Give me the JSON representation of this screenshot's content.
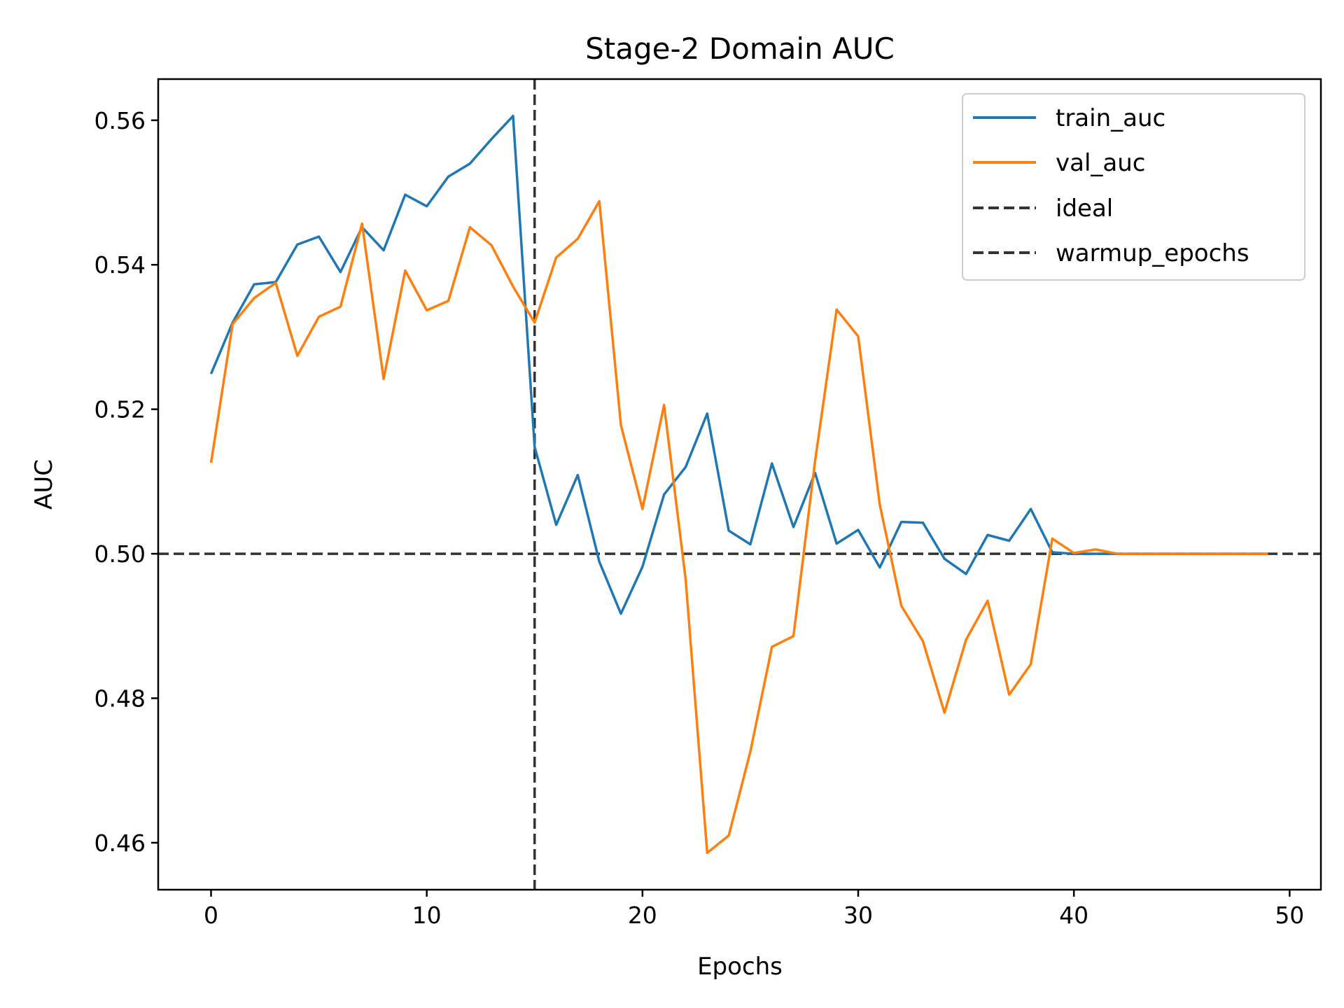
{
  "chart_data": {
    "type": "line",
    "title": "Stage-2 Domain AUC",
    "xlabel": "Epochs",
    "ylabel": "AUC",
    "xlim": [
      -2.45,
      51.45
    ],
    "ylim": [
      0.4535,
      0.5657
    ],
    "xticks": [
      0,
      10,
      20,
      30,
      40,
      50
    ],
    "xtick_labels": [
      "0",
      "10",
      "20",
      "30",
      "40",
      "50"
    ],
    "yticks": [
      0.46,
      0.48,
      0.5,
      0.52,
      0.54,
      0.56
    ],
    "ytick_labels": [
      "0.46",
      "0.48",
      "0.50",
      "0.52",
      "0.54",
      "0.56"
    ],
    "grid": false,
    "legend_position": "top-right",
    "series": [
      {
        "name": "train_auc",
        "color": "#1f77b4",
        "style": "solid",
        "x": [
          0,
          1,
          2,
          3,
          4,
          5,
          6,
          7,
          8,
          9,
          10,
          11,
          12,
          13,
          14,
          15,
          16,
          17,
          18,
          19,
          20,
          21,
          22,
          23,
          24,
          25,
          26,
          27,
          28,
          29,
          30,
          31,
          32,
          33,
          34,
          35,
          36,
          37,
          38,
          39,
          40,
          41,
          42,
          43,
          44,
          45,
          46,
          47,
          48,
          49
        ],
        "y": [
          0.5249,
          0.532,
          0.5373,
          0.5376,
          0.5428,
          0.5439,
          0.539,
          0.5452,
          0.542,
          0.5497,
          0.5481,
          0.5522,
          0.554,
          0.5574,
          0.5606,
          0.5148,
          0.504,
          0.5109,
          0.4989,
          0.4917,
          0.4982,
          0.5082,
          0.512,
          0.5194,
          0.5032,
          0.5013,
          0.5125,
          0.5037,
          0.5112,
          0.5014,
          0.5033,
          0.4981,
          0.5044,
          0.5043,
          0.4993,
          0.4972,
          0.5026,
          0.5018,
          0.5062,
          0.5002,
          0.5,
          0.5,
          0.5,
          0.5,
          0.5,
          0.5,
          0.5,
          0.5,
          0.5,
          0.5
        ]
      },
      {
        "name": "val_auc",
        "color": "#ff7f0e",
        "style": "solid",
        "x": [
          0,
          1,
          2,
          3,
          4,
          5,
          6,
          7,
          8,
          9,
          10,
          11,
          12,
          13,
          14,
          15,
          16,
          17,
          18,
          19,
          20,
          21,
          22,
          23,
          24,
          25,
          26,
          27,
          28,
          29,
          30,
          31,
          32,
          33,
          34,
          35,
          36,
          37,
          38,
          39,
          40,
          41,
          42,
          43,
          44,
          45,
          46,
          47,
          48,
          49
        ],
        "y": [
          0.5126,
          0.5318,
          0.5354,
          0.5375,
          0.5274,
          0.5328,
          0.5342,
          0.5457,
          0.5242,
          0.5392,
          0.5337,
          0.535,
          0.5452,
          0.5427,
          0.537,
          0.532,
          0.541,
          0.5436,
          0.5488,
          0.5178,
          0.5062,
          0.5206,
          0.4965,
          0.4586,
          0.461,
          0.4726,
          0.4871,
          0.4886,
          0.5128,
          0.5338,
          0.5301,
          0.5068,
          0.4928,
          0.4879,
          0.478,
          0.4881,
          0.4935,
          0.4805,
          0.4847,
          0.5021,
          0.5001,
          0.5006,
          0.5,
          0.5,
          0.5,
          0.5,
          0.5,
          0.5,
          0.5,
          0.5
        ]
      },
      {
        "name": "ideal",
        "color": "#333333",
        "style": "dashed",
        "orientation": "horizontal",
        "value": 0.5
      },
      {
        "name": "warmup_epochs",
        "color": "#333333",
        "style": "dashed",
        "orientation": "vertical",
        "value": 15
      }
    ]
  }
}
